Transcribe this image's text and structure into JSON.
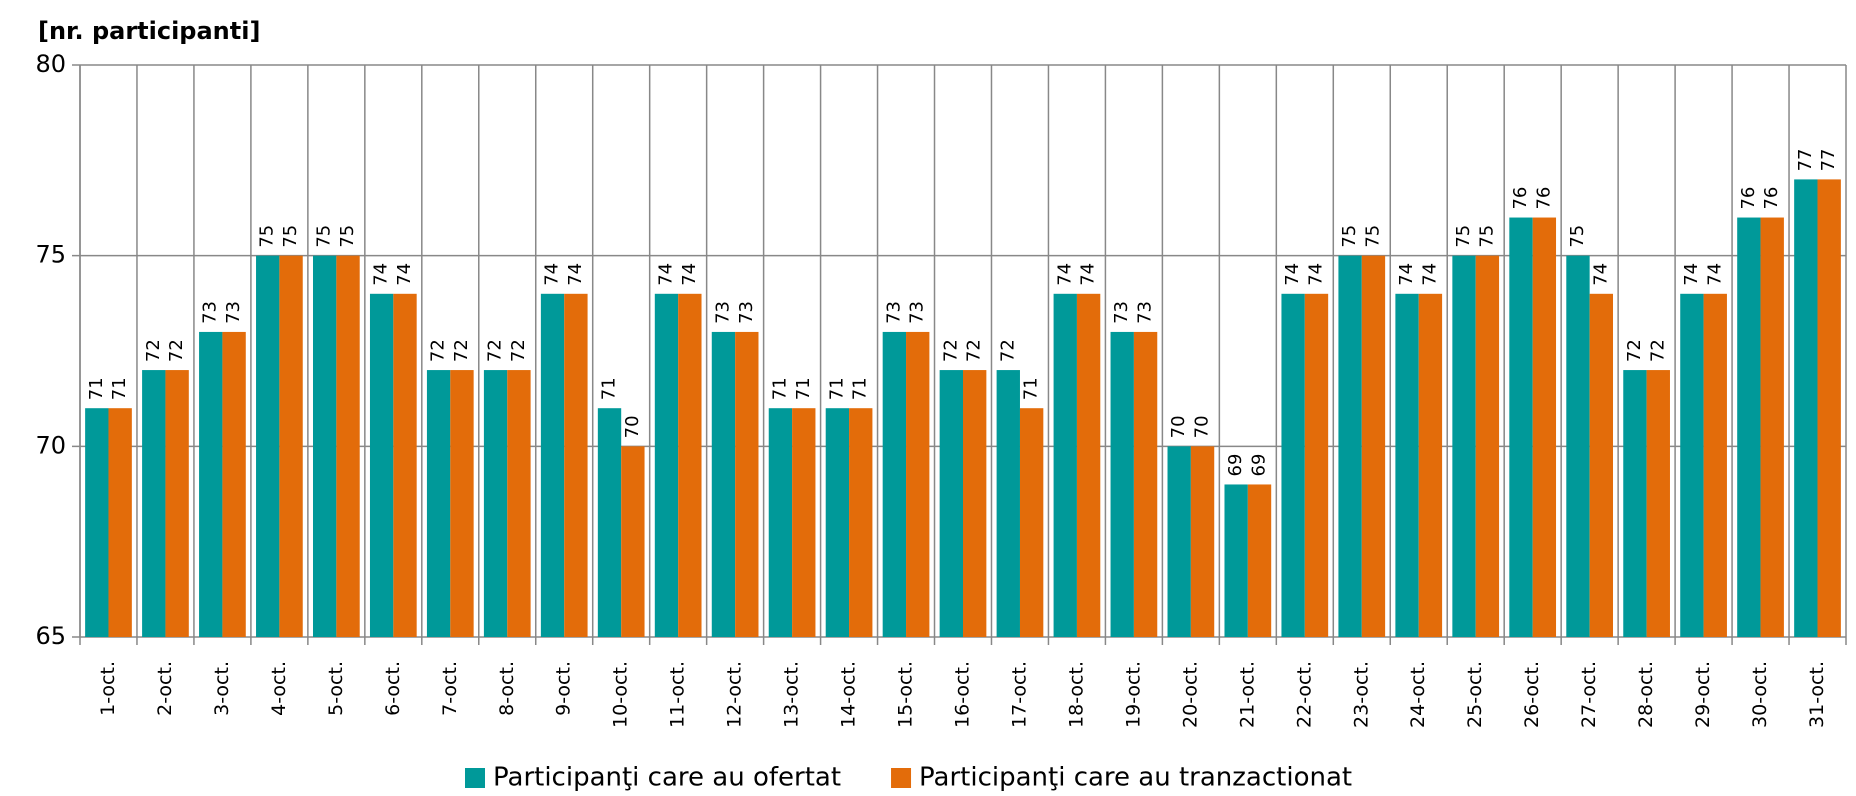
{
  "chart_data": {
    "type": "bar",
    "y_axis_label": "[nr. participanti]",
    "categories": [
      "1-oct.",
      "2-oct.",
      "3-oct.",
      "4-oct.",
      "5-oct.",
      "6-oct.",
      "7-oct.",
      "8-oct.",
      "9-oct.",
      "10-oct.",
      "11-oct.",
      "12-oct.",
      "13-oct.",
      "14-oct.",
      "15-oct.",
      "16-oct.",
      "17-oct.",
      "18-oct.",
      "19-oct.",
      "20-oct.",
      "21-oct.",
      "22-oct.",
      "23-oct.",
      "24-oct.",
      "25-oct.",
      "26-oct.",
      "27-oct.",
      "28-oct.",
      "29-oct.",
      "30-oct.",
      "31-oct."
    ],
    "series": [
      {
        "name": "Participanţi care au ofertat",
        "color": "#009999",
        "values": [
          71,
          72,
          73,
          75,
          75,
          74,
          72,
          72,
          74,
          71,
          74,
          73,
          71,
          71,
          73,
          72,
          72,
          74,
          73,
          70,
          69,
          74,
          75,
          74,
          75,
          76,
          75,
          72,
          74,
          76,
          77
        ]
      },
      {
        "name": "Participanţi care au tranzactionat",
        "color": "#e36c0a",
        "values": [
          71,
          72,
          73,
          75,
          75,
          74,
          72,
          72,
          74,
          70,
          74,
          73,
          71,
          71,
          73,
          72,
          71,
          74,
          73,
          70,
          69,
          74,
          75,
          74,
          75,
          76,
          74,
          72,
          74,
          76,
          77
        ]
      }
    ],
    "ylim": [
      65,
      80
    ],
    "yticks": [
      65,
      70,
      75,
      80
    ],
    "grid": true,
    "legend": "bottom"
  }
}
